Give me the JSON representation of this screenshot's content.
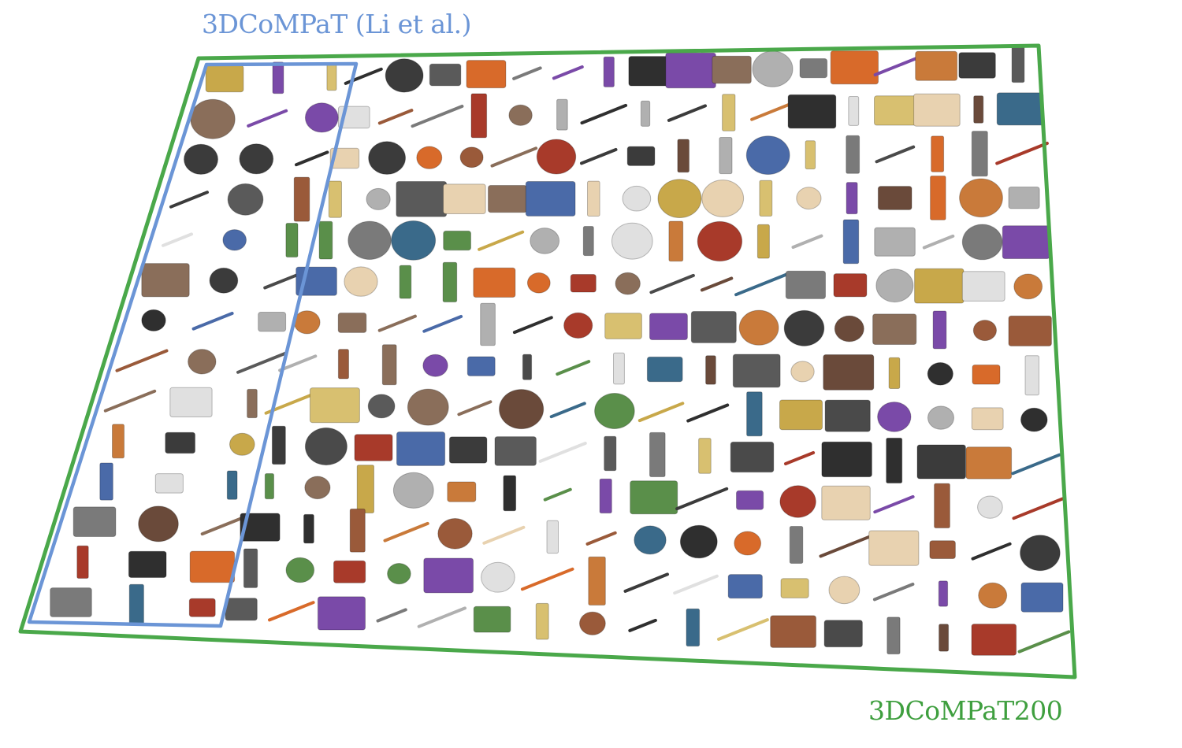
{
  "labels": {
    "inner_dataset": "3DCoMPaT (Li et al.)",
    "outer_dataset": "3DCoMPaT200"
  },
  "colors": {
    "inner_frame": "#6b95d6",
    "outer_frame": "#4aa84a",
    "inner_label": "#6b95d6",
    "outer_label": "#3f9f3f"
  },
  "grid": {
    "rows": 14,
    "cols": 20,
    "inner_cols": 3
  },
  "palette": [
    "#6a4a3a",
    "#3b3b3b",
    "#c97a3a",
    "#e8d2b0",
    "#5a8f4a",
    "#2f2f2f",
    "#8a6e5a",
    "#b0b0b0",
    "#7a4aa8",
    "#d86a2a",
    "#4a6aa8",
    "#c8a84a",
    "#a83a2a",
    "#5a5a5a",
    "#e0e0e0",
    "#9a5a3a",
    "#3a6a8a",
    "#d8c070",
    "#7a7a7a",
    "#4a4a4a"
  ]
}
